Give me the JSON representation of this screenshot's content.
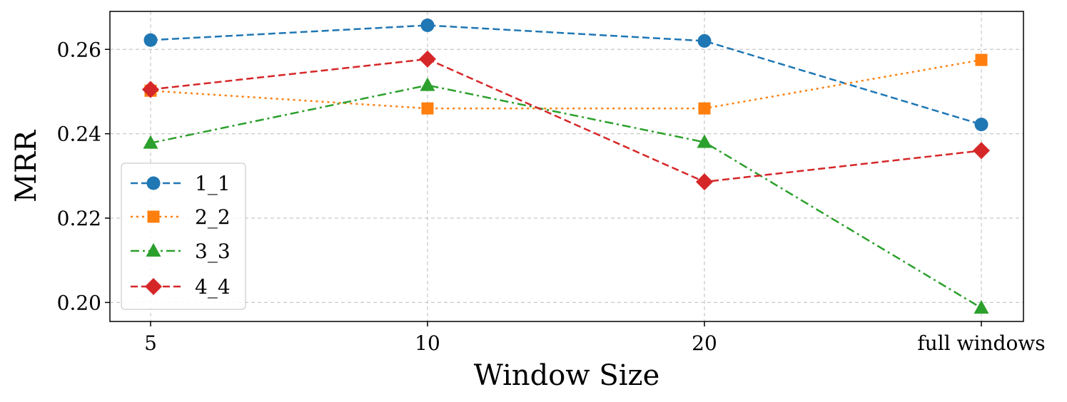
{
  "chart_data": {
    "type": "line",
    "title": "",
    "xlabel": "Window Size",
    "ylabel": "MRR",
    "categories": [
      "5",
      "10",
      "20",
      "full windows"
    ],
    "ylim": [
      0.1955,
      0.269
    ],
    "yticks": [
      0.2,
      0.22,
      0.24,
      0.26
    ],
    "ytick_labels": [
      "0.20",
      "0.22",
      "0.24",
      "0.26"
    ],
    "grid": true,
    "legend_position": "lower-left",
    "series": [
      {
        "name": "1_1",
        "values": [
          0.2622,
          0.2657,
          0.262,
          0.2422
        ],
        "color": "#1f77b4",
        "linestyle": "dashed",
        "marker": "circle"
      },
      {
        "name": "2_2",
        "values": [
          0.2502,
          0.246,
          0.246,
          0.2575
        ],
        "color": "#ff7f0e",
        "linestyle": "dotted",
        "marker": "square"
      },
      {
        "name": "3_3",
        "values": [
          0.2378,
          0.2515,
          0.238,
          0.1987
        ],
        "color": "#2ca02c",
        "linestyle": "dashdot",
        "marker": "triangle"
      },
      {
        "name": "4_4",
        "values": [
          0.2505,
          0.2577,
          0.2286,
          0.236
        ],
        "color": "#d62728",
        "linestyle": "dashed",
        "marker": "diamond"
      }
    ]
  }
}
